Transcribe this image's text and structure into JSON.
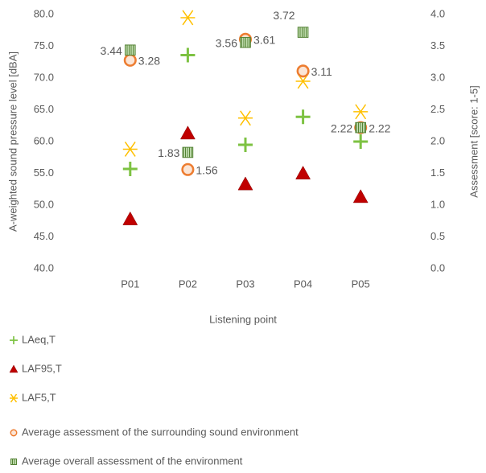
{
  "chart_data": {
    "type": "scatter",
    "categories": [
      "P01",
      "P02",
      "P03",
      "P04",
      "P05"
    ],
    "x_label": "Listening point",
    "y_label": "A-weighted sound pressure level [dBA]",
    "y2_label": "Assessment  [score: 1-5]",
    "ylim": [
      40,
      80
    ],
    "yticks": [
      {
        "value": 40,
        "label": "40.0"
      },
      {
        "value": 45,
        "label": "45.0"
      },
      {
        "value": 50,
        "label": "50.0"
      },
      {
        "value": 55,
        "label": "55.0"
      },
      {
        "value": 60,
        "label": "60.0"
      },
      {
        "value": 65,
        "label": "65.0"
      },
      {
        "value": 70,
        "label": "70.0"
      },
      {
        "value": 75,
        "label": "75.0"
      },
      {
        "value": 80,
        "label": "80.0"
      }
    ],
    "y2lim": [
      0,
      4
    ],
    "y2ticks": [
      {
        "value": 0,
        "label": "0.0"
      },
      {
        "value": 0.5,
        "label": "0.5"
      },
      {
        "value": 1,
        "label": "1.0"
      },
      {
        "value": 1.5,
        "label": "1.5"
      },
      {
        "value": 2,
        "label": "2.0"
      },
      {
        "value": 2.5,
        "label": "2.5"
      },
      {
        "value": 3,
        "label": "3.0"
      },
      {
        "value": 3.5,
        "label": "3.5"
      },
      {
        "value": 4,
        "label": "4.0"
      }
    ],
    "legend": "bottom",
    "series": [
      {
        "name": "LAeq,T",
        "color": "#7dc242",
        "marker": "plus",
        "values": [
          55.7,
          73.6,
          59.5,
          63.9,
          60.0
        ]
      },
      {
        "name": "LAF95,T",
        "color": "#c00000",
        "marker": "triangle",
        "values": [
          47.8,
          61.3,
          53.3,
          55.0,
          51.3
        ]
      },
      {
        "name": "LAF5,T",
        "color": "#ffc000",
        "marker": "asterisk",
        "values": [
          58.8,
          79.5,
          63.7,
          69.5,
          64.7
        ]
      },
      {
        "name": "Average assessment of the surrounding sound environment",
        "color": "#ed7d31",
        "marker": "ring",
        "axis": "y2",
        "data_labels": true,
        "values": [
          3.28,
          1.56,
          3.61,
          3.11,
          2.22
        ]
      },
      {
        "name": "Average overall assessment of the environment",
        "color": "#70ad47",
        "marker": "square",
        "axis": "y2",
        "data_labels": true,
        "values": [
          3.44,
          1.83,
          3.56,
          3.72,
          2.22
        ]
      }
    ]
  }
}
